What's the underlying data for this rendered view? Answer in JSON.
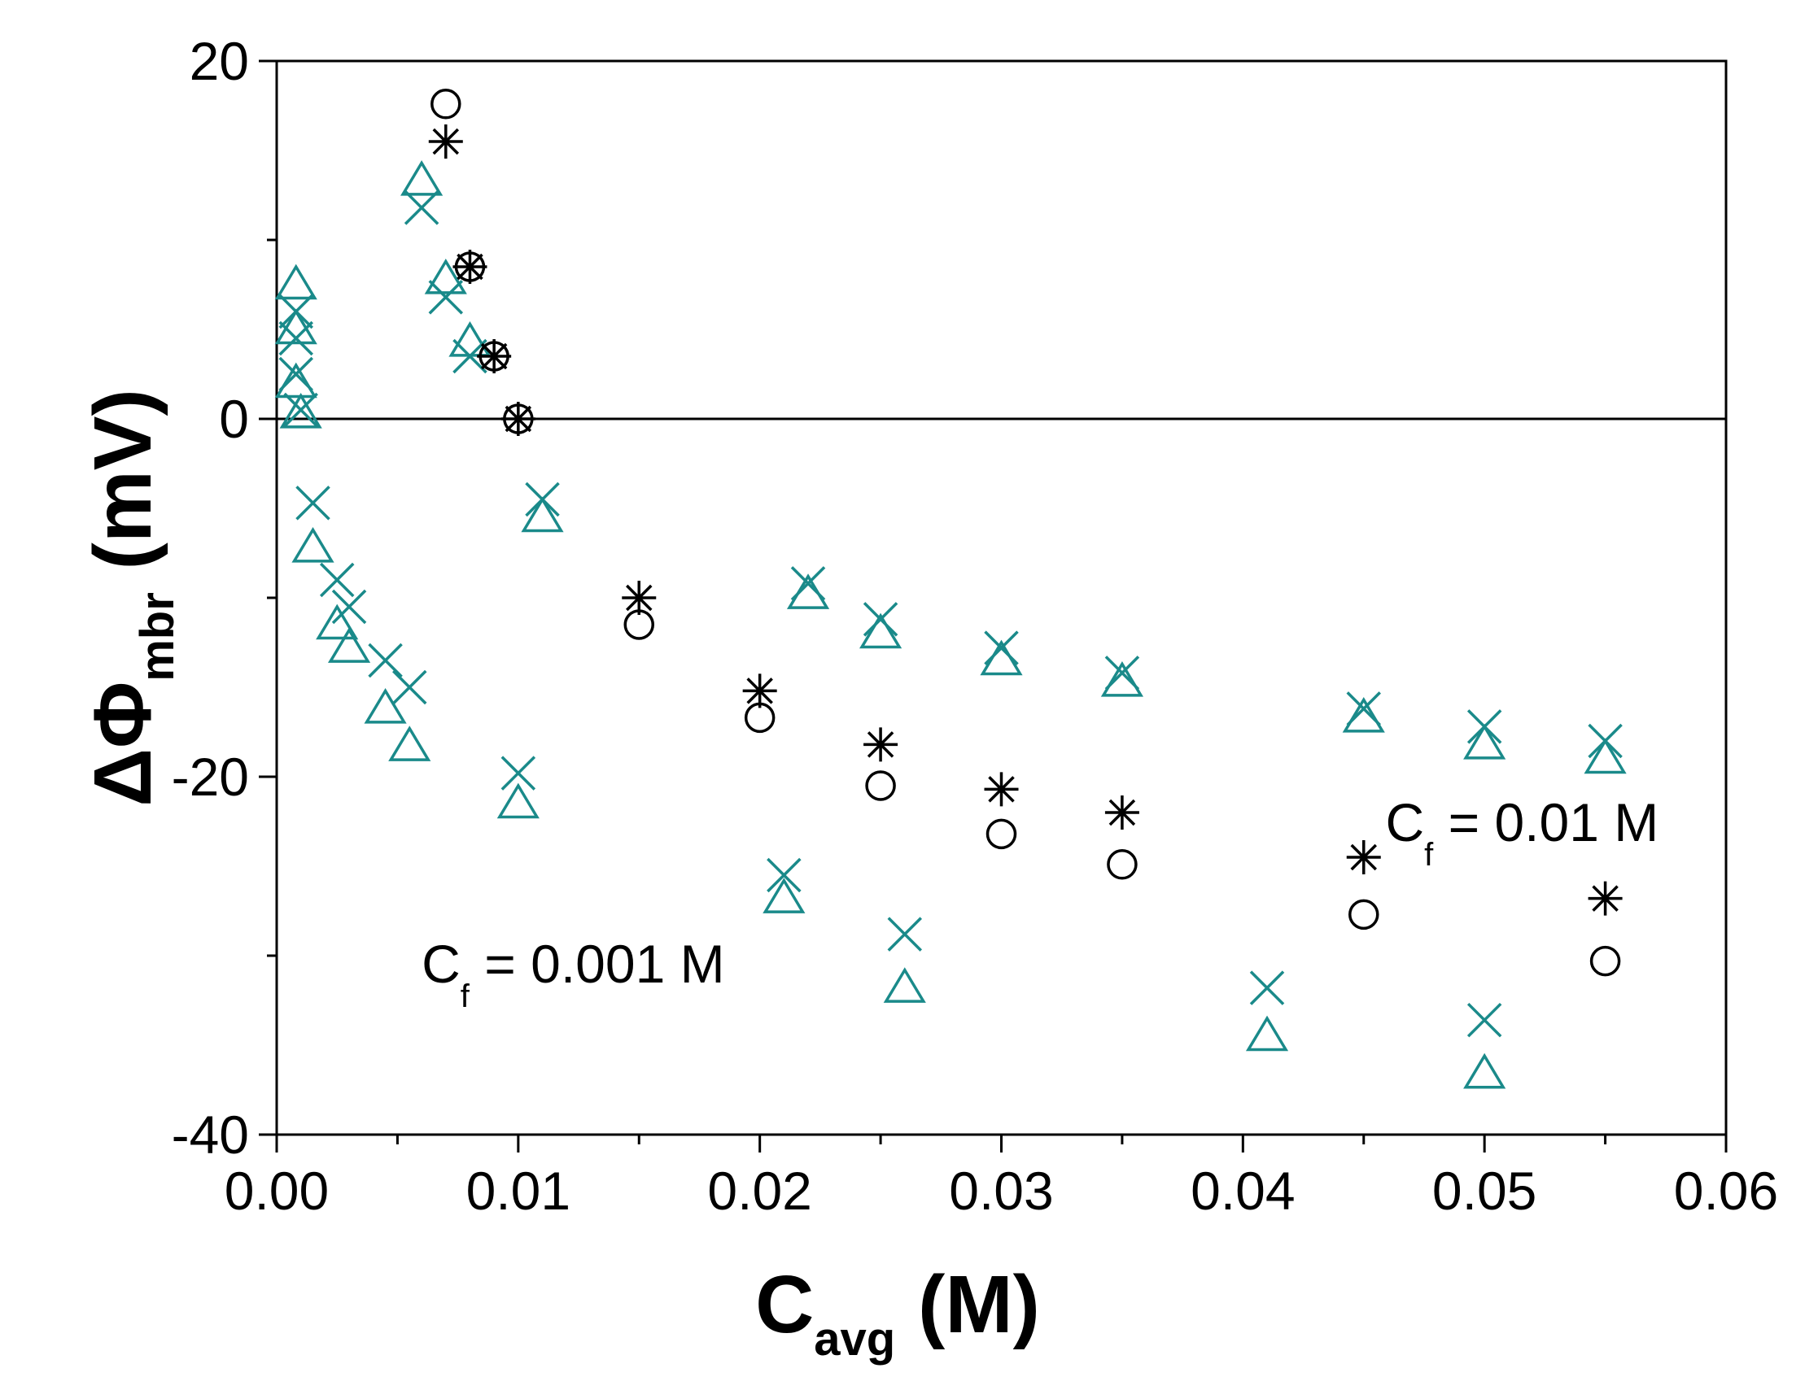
{
  "chart_data": {
    "type": "scatter",
    "title": "",
    "xlabel": {
      "main": "C",
      "sub": "avg",
      "unit": " (M)"
    },
    "ylabel": {
      "main": "ΔΦ",
      "sub": "mbr",
      "unit": " (mV)"
    },
    "xlim": [
      0,
      0.06
    ],
    "ylim": [
      -40,
      20
    ],
    "xticks": [
      0.0,
      0.01,
      0.02,
      0.03,
      0.04,
      0.05,
      0.06
    ],
    "xtick_labels": [
      "0.00",
      "0.01",
      "0.02",
      "0.03",
      "0.04",
      "0.05",
      "0.06"
    ],
    "yticks": [
      -40,
      -20,
      0,
      20
    ],
    "ytick_labels": [
      "-40",
      "-20",
      "0",
      "20"
    ],
    "y_minor_ticks": [
      -30,
      -10,
      10
    ],
    "x_minor_ticks": [
      0.005,
      0.015,
      0.025,
      0.035,
      0.045,
      0.055
    ],
    "zero_line": true,
    "grid": false,
    "annotations": [
      {
        "main": "C",
        "sub": "f",
        "rest": " = 0.001 M",
        "x": 0.006,
        "y": -31.5
      },
      {
        "main": "C",
        "sub": "f",
        "rest": " = 0.01 M",
        "x": 0.0459,
        "y": -23.6
      }
    ],
    "series": [
      {
        "name": "cross (Cf = 0.001 M)",
        "marker": "x",
        "color": "#1a8a8a",
        "points": [
          [
            0.0008,
            6
          ],
          [
            0.0008,
            4.5
          ],
          [
            0.0008,
            2.5
          ],
          [
            0.001,
            0.5
          ],
          [
            0.0015,
            -4.7
          ],
          [
            0.0025,
            -9
          ],
          [
            0.003,
            -10.5
          ],
          [
            0.0045,
            -13.5
          ],
          [
            0.0055,
            -15
          ],
          [
            0.006,
            11.8
          ],
          [
            0.007,
            6.8
          ],
          [
            0.008,
            3.5
          ],
          [
            0.01,
            -19.8
          ],
          [
            0.011,
            -4.5
          ],
          [
            0.021,
            -25.5
          ],
          [
            0.022,
            -9.2
          ],
          [
            0.025,
            -11.2
          ],
          [
            0.026,
            -28.8
          ],
          [
            0.03,
            -12.8
          ],
          [
            0.035,
            -14.2
          ],
          [
            0.041,
            -31.8
          ],
          [
            0.045,
            -16.2
          ],
          [
            0.05,
            -17.2
          ],
          [
            0.05,
            -33.6
          ],
          [
            0.055,
            -18
          ]
        ]
      },
      {
        "name": "triangle (Cf = 0.001 M)",
        "marker": "triangle",
        "color": "#1a8a8a",
        "points": [
          [
            0.0008,
            7.5
          ],
          [
            0.0008,
            5
          ],
          [
            0.0008,
            2
          ],
          [
            0.001,
            0.3
          ],
          [
            0.0015,
            -7.2
          ],
          [
            0.0025,
            -11.5
          ],
          [
            0.003,
            -12.8
          ],
          [
            0.0045,
            -16.2
          ],
          [
            0.0055,
            -18.3
          ],
          [
            0.006,
            13.3
          ],
          [
            0.007,
            7.8
          ],
          [
            0.008,
            4.3
          ],
          [
            0.01,
            -21.5
          ],
          [
            0.011,
            -5.5
          ],
          [
            0.021,
            -26.8
          ],
          [
            0.022,
            -9.8
          ],
          [
            0.025,
            -12
          ],
          [
            0.026,
            -31.8
          ],
          [
            0.03,
            -13.5
          ],
          [
            0.035,
            -14.7
          ],
          [
            0.041,
            -34.5
          ],
          [
            0.045,
            -16.7
          ],
          [
            0.05,
            -18.2
          ],
          [
            0.05,
            -36.6
          ],
          [
            0.055,
            -19
          ]
        ]
      },
      {
        "name": "asterisk (Cf = 0.01 M)",
        "marker": "asterisk",
        "color": "#000000",
        "points": [
          [
            0.007,
            15.5
          ],
          [
            0.008,
            8.5
          ],
          [
            0.009,
            3.5
          ],
          [
            0.01,
            0
          ],
          [
            0.015,
            -10
          ],
          [
            0.02,
            -15.2
          ],
          [
            0.025,
            -18.2
          ],
          [
            0.03,
            -20.7
          ],
          [
            0.035,
            -22
          ],
          [
            0.045,
            -24.5
          ],
          [
            0.055,
            -26.8
          ]
        ]
      },
      {
        "name": "circle (Cf = 0.01 M)",
        "marker": "circle",
        "color": "#000000",
        "points": [
          [
            0.007,
            17.6
          ],
          [
            0.008,
            8.5
          ],
          [
            0.009,
            3.5
          ],
          [
            0.01,
            0
          ],
          [
            0.015,
            -11.5
          ],
          [
            0.02,
            -16.7
          ],
          [
            0.025,
            -20.5
          ],
          [
            0.03,
            -23.2
          ],
          [
            0.035,
            -24.9
          ],
          [
            0.045,
            -27.7
          ],
          [
            0.055,
            -30.3
          ]
        ]
      }
    ]
  }
}
